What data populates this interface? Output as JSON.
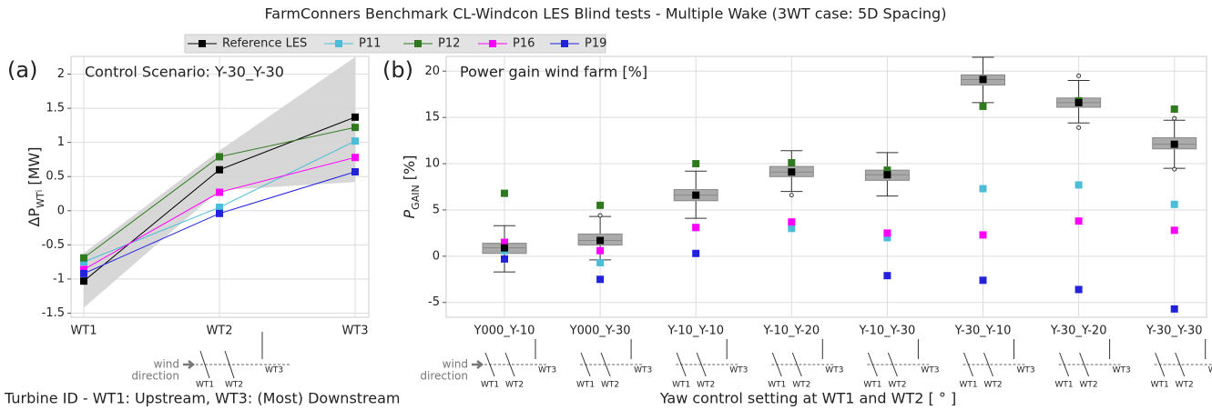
{
  "title": "FarmConners Benchmark CL-Windcon LES Blind tests - Multiple Wake (3WT case: 5D Spacing)",
  "turbine_sketch": {
    "wind": "wind",
    "direction": "direction",
    "turbines": [
      "WT1",
      "WT2",
      "WT3"
    ]
  },
  "chart_data": [
    {
      "type": "line",
      "panel": "(a)",
      "title": "Control Scenario: Y-30_Y-30",
      "ylabel": [
        "ΔP",
        "WT",
        "i",
        " [MW]"
      ],
      "xlabel": "Turbine ID - WT1: Upstream, WT3: (Most) Downstream",
      "categories": [
        "WT1",
        "WT2",
        "WT3"
      ],
      "ylim": [
        -1.56,
        2.26
      ],
      "yticks": [
        -1.5,
        -1.0,
        -0.5,
        0.0,
        0.5,
        1.0,
        1.5,
        2.0
      ],
      "grid": true,
      "band": {
        "color": "#d3d3d3",
        "lower": [
          -1.42,
          0.3,
          0.42
        ],
        "upper": [
          -0.62,
          0.88,
          2.25
        ]
      },
      "series": [
        {
          "name": "Reference LES",
          "color": "#000000",
          "values": [
            -1.03,
            0.6,
            1.37
          ]
        },
        {
          "name": "P11",
          "color": "#4cbcd8",
          "values": [
            -0.75,
            0.05,
            1.02
          ]
        },
        {
          "name": "P12",
          "color": "#2f7a1f",
          "values": [
            -0.69,
            0.79,
            1.22
          ]
        },
        {
          "name": "P16",
          "color": "#ff00ff",
          "values": [
            -0.86,
            0.27,
            0.78
          ]
        },
        {
          "name": "P19",
          "color": "#2222dd",
          "values": [
            -0.92,
            -0.04,
            0.57
          ]
        }
      ]
    },
    {
      "type": "box",
      "panel": "(b)",
      "title": "Power gain wind farm [%]",
      "ylabel": [
        "P",
        "GAIN",
        " [%]"
      ],
      "xlabel": "Yaw control setting at WT1 and WT2 [ ° ]",
      "categories": [
        "Y000_Y-10",
        "Y000_Y-30",
        "Y-10_Y-10",
        "Y-10_Y-20",
        "Y-10_Y-30",
        "Y-30_Y-10",
        "Y-30_Y-20",
        "Y-30_Y-30"
      ],
      "ylim": [
        -6.6,
        21.6
      ],
      "yticks": [
        -5,
        0,
        5,
        10,
        15,
        20
      ],
      "grid": true,
      "box_color": "#aaaaaa",
      "boxes": [
        {
          "whislo": -1.7,
          "q1": 0.3,
          "med": 0.9,
          "q3": 1.4,
          "whishi": 3.3,
          "fliers": []
        },
        {
          "whislo": -0.4,
          "q1": 1.2,
          "med": 1.7,
          "q3": 2.4,
          "whishi": 4.3,
          "fliers": [
            4.4
          ]
        },
        {
          "whislo": 4.1,
          "q1": 6.0,
          "med": 6.6,
          "q3": 7.2,
          "whishi": 9.2,
          "fliers": []
        },
        {
          "whislo": 7.0,
          "q1": 8.6,
          "med": 9.1,
          "q3": 9.7,
          "whishi": 11.4,
          "fliers": [
            6.6
          ]
        },
        {
          "whislo": 6.5,
          "q1": 8.2,
          "med": 8.8,
          "q3": 9.3,
          "whishi": 11.2,
          "fliers": []
        },
        {
          "whislo": 16.6,
          "q1": 18.5,
          "med": 19.1,
          "q3": 19.6,
          "whishi": 21.5,
          "fliers": []
        },
        {
          "whislo": 14.4,
          "q1": 16.1,
          "med": 16.6,
          "q3": 17.1,
          "whishi": 19.0,
          "fliers": [
            19.5,
            13.9
          ]
        },
        {
          "whislo": 9.5,
          "q1": 11.6,
          "med": 12.1,
          "q3": 12.8,
          "whishi": 14.7,
          "fliers": [
            14.9,
            9.4
          ]
        }
      ],
      "series": [
        {
          "color": "#000000",
          "values": [
            0.9,
            1.7,
            6.6,
            9.1,
            8.8,
            19.1,
            16.6,
            12.1
          ]
        },
        {
          "color": "#4cbcd8",
          "values": [
            0.6,
            -0.7,
            3.1,
            3.0,
            2.0,
            7.3,
            7.7,
            5.6
          ]
        },
        {
          "color": "#2f7a1f",
          "values": [
            6.8,
            5.5,
            10.0,
            10.1,
            9.3,
            16.2,
            16.8,
            15.9
          ]
        },
        {
          "color": "#ff00ff",
          "values": [
            1.5,
            0.6,
            3.1,
            3.7,
            2.5,
            2.3,
            3.8,
            2.8
          ]
        },
        {
          "color": "#2222dd",
          "values": [
            -0.3,
            -2.5,
            0.3,
            null,
            -2.1,
            -2.6,
            -3.6,
            -5.7
          ]
        }
      ]
    }
  ]
}
